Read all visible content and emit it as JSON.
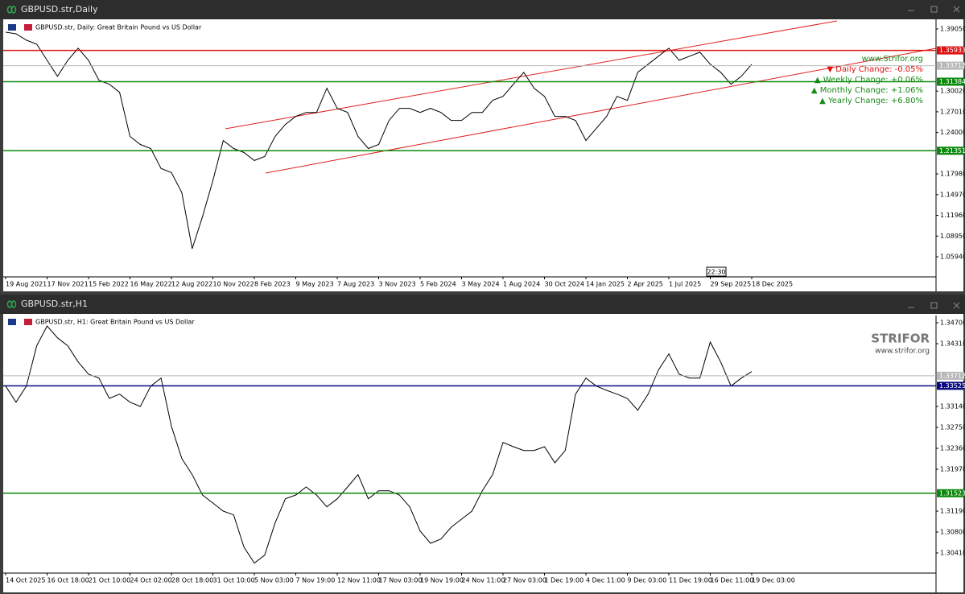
{
  "chart_data": [
    {
      "type": "line",
      "title": "GBPUSD.str,Daily",
      "subtitle": "GBPUSD.str, Daily:  Great Britain Pound vs US Dollar",
      "color": "#000000",
      "categories": [
        "19 Aug 2021",
        null,
        null,
        null,
        "17 Nov 2021",
        null,
        null,
        null,
        "15 Feb 2022",
        null,
        null,
        null,
        "16 May 2022",
        null,
        null,
        null,
        "12 Aug 2022",
        null,
        null,
        null,
        "10 Nov 2022",
        null,
        null,
        null,
        "8 Feb 2023",
        null,
        null,
        null,
        "9 May 2023",
        null,
        null,
        null,
        "7 Aug 2023",
        null,
        null,
        null,
        "3 Nov 2023",
        null,
        null,
        null,
        "5 Feb 2024",
        null,
        null,
        null,
        "3 May 2024",
        null,
        null,
        null,
        "1 Aug 2024",
        null,
        null,
        null,
        "30 Oct 2024",
        null,
        null,
        null,
        "14 Jan 2025",
        null,
        null,
        null,
        "2 Apr 2025",
        null,
        null,
        null,
        "1 Jul 2025",
        null,
        null,
        null,
        "29 Sep 2025",
        null,
        null,
        null,
        "18 Dec 2025"
      ],
      "values": [
        1.3858,
        1.3835,
        1.3742,
        1.3683,
        1.345,
        1.3217,
        1.345,
        1.3625,
        1.345,
        1.3159,
        1.3101,
        1.2984,
        1.2343,
        1.2226,
        1.2168,
        1.1876,
        1.1818,
        1.1527,
        1.0711,
        1.1177,
        1.1701,
        1.2284,
        1.2168,
        1.2109,
        1.1993,
        1.2051,
        1.2343,
        1.2517,
        1.2634,
        1.2692,
        1.2692,
        1.3042,
        1.2751,
        1.2692,
        1.2343,
        1.2168,
        1.2226,
        1.2576,
        1.2751,
        1.2751,
        1.2692,
        1.2751,
        1.2692,
        1.2576,
        1.2576,
        1.2692,
        1.2692,
        1.2867,
        1.2926,
        1.3101,
        1.3275,
        1.3042,
        1.2926,
        1.2634,
        1.2634,
        1.2576,
        1.2284,
        1.2459,
        1.2634,
        1.2926,
        1.2867,
        1.3275,
        1.3392,
        1.3509,
        1.3625,
        1.345,
        1.3509,
        1.3567,
        1.3392,
        1.3275,
        1.3101,
        1.3217,
        1.3392
      ],
      "ylim": [
        1.0302,
        1.4045
      ],
      "yticks": [
        {
          "value": 1.3905,
          "label": "1.39050"
        },
        {
          "value": 1.3002,
          "label": "1.30020"
        },
        {
          "value": 1.2701,
          "label": "1.27010"
        },
        {
          "value": 1.24,
          "label": "1.24000"
        },
        {
          "value": 1.1798,
          "label": "1.17980"
        },
        {
          "value": 1.1497,
          "label": "1.14970"
        },
        {
          "value": 1.1196,
          "label": "1.11960"
        },
        {
          "value": 1.0895,
          "label": "1.08950"
        },
        {
          "value": 1.0594,
          "label": "1.05940"
        }
      ],
      "levels": [
        {
          "value": 1.35933,
          "color": "#e01010"
        },
        {
          "value": 1.33712,
          "color": "#b8b8b8"
        },
        {
          "value": 1.31384,
          "color": "#0a8a0a"
        },
        {
          "value": 1.21351,
          "color": "#0a8a0a"
        }
      ],
      "annotations": [
        "www.Strifor.org",
        "▼ Daily Change: -0.05%",
        "▲ Weekly Change: +0.06%",
        "▲ Monthly Change: +1.06%",
        "▲ Yearly Change: +6.80%"
      ],
      "time_marker": "22:30"
    },
    {
      "type": "line",
      "title": "GBPUSD.str,H1",
      "subtitle": "GBPUSD.str, H1:  Great Britain Pound vs US Dollar",
      "color": "#000000",
      "categories": [
        "14 Oct 2025",
        null,
        null,
        null,
        "16 Oct 18:00",
        null,
        null,
        null,
        "21 Oct 10:00",
        null,
        null,
        null,
        "24 Oct 02:00",
        null,
        null,
        null,
        "28 Oct 18:00",
        null,
        null,
        null,
        "31 Oct 10:00",
        null,
        null,
        null,
        "5 Nov 03:00",
        null,
        null,
        null,
        "7 Nov 19:00",
        null,
        null,
        null,
        "12 Nov 11:00",
        null,
        null,
        null,
        "17 Nov 03:00",
        null,
        null,
        null,
        "19 Nov 19:00",
        null,
        null,
        null,
        "24 Nov 11:00",
        null,
        null,
        null,
        "27 Nov 03:00",
        null,
        null,
        null,
        "1 Dec 19:00",
        null,
        null,
        null,
        "4 Dec 11:00",
        null,
        null,
        null,
        "9 Dec 03:00",
        null,
        null,
        null,
        "11 Dec 19:00",
        null,
        null,
        null,
        "16 Dec 11:00",
        null,
        null,
        null,
        "19 Dec 03:00"
      ],
      "values": [
        1.3352,
        1.3322,
        1.3352,
        1.3427,
        1.3464,
        1.3442,
        1.3427,
        1.3397,
        1.3374,
        1.3367,
        1.3329,
        1.3337,
        1.3322,
        1.3314,
        1.3352,
        1.3367,
        1.3277,
        1.3217,
        1.3187,
        1.3149,
        1.3134,
        1.3119,
        1.3112,
        1.3052,
        1.3022,
        1.3037,
        1.3097,
        1.3142,
        1.3149,
        1.3164,
        1.3149,
        1.3127,
        1.3142,
        1.3164,
        1.3187,
        1.3142,
        1.3157,
        1.3157,
        1.3149,
        1.3127,
        1.3082,
        1.3059,
        1.3067,
        1.3089,
        1.3104,
        1.3119,
        1.3157,
        1.3187,
        1.3247,
        1.3239,
        1.3232,
        1.3232,
        1.3239,
        1.3209,
        1.3232,
        1.3337,
        1.3367,
        1.3352,
        1.3344,
        1.3337,
        1.3329,
        1.3307,
        1.3337,
        1.3382,
        1.3412,
        1.3374,
        1.3367,
        1.3367,
        1.3434,
        1.3397,
        1.3352,
        1.3367,
        1.3379
      ],
      "ylim": [
        1.30035,
        1.34835
      ],
      "yticks": [
        {
          "value": 1.347,
          "label": "1.34700"
        },
        {
          "value": 1.3431,
          "label": "1.34310"
        },
        {
          "value": 1.3314,
          "label": "1.33140"
        },
        {
          "value": 1.3275,
          "label": "1.32750"
        },
        {
          "value": 1.3236,
          "label": "1.32360"
        },
        {
          "value": 1.3197,
          "label": "1.31970"
        },
        {
          "value": 1.3119,
          "label": "1.31190"
        },
        {
          "value": 1.308,
          "label": "1.30800"
        },
        {
          "value": 1.3041,
          "label": "1.30410"
        }
      ],
      "levels": [
        {
          "value": 1.33712,
          "color": "#b8b8b8"
        },
        {
          "value": 1.33525,
          "color": "#0a0a80"
        },
        {
          "value": 1.31523,
          "color": "#0a8a0a"
        }
      ],
      "annotations": [
        "STRIFOR",
        "www.strifor.org"
      ]
    }
  ]
}
